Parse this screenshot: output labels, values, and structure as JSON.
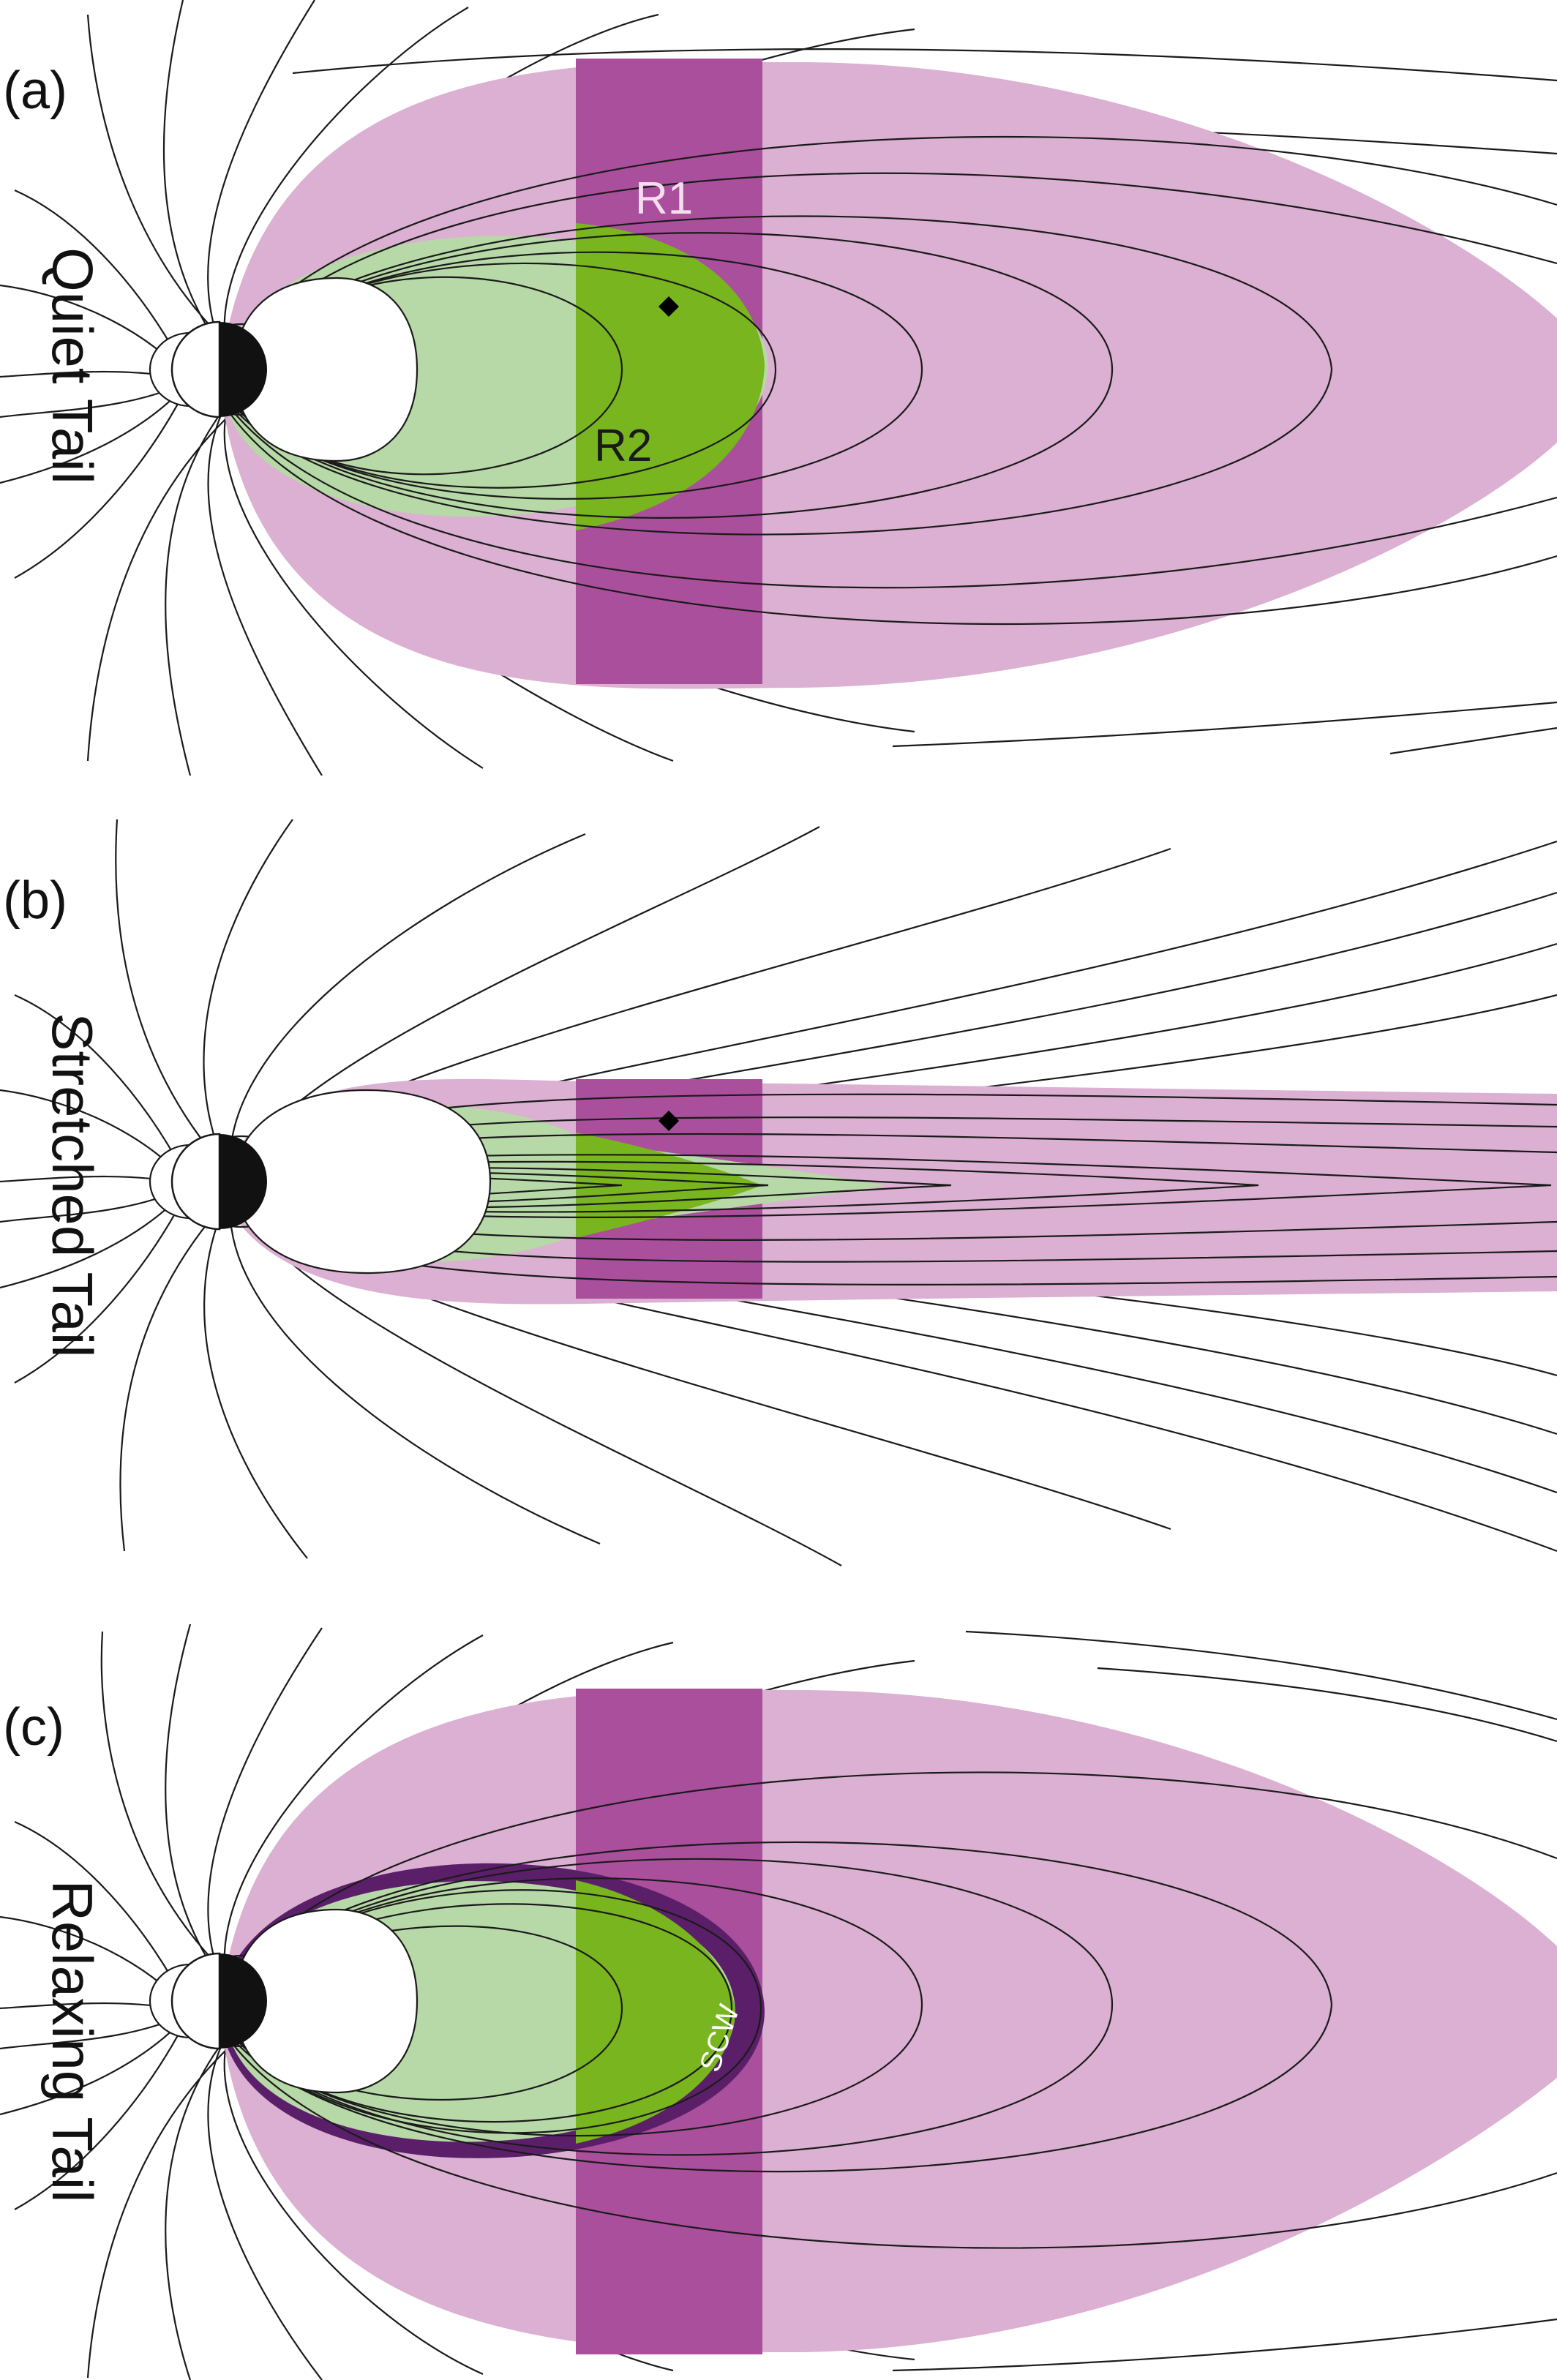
{
  "figure": {
    "colors": {
      "r1_light": "#dbb0d2",
      "r1_dark": "#a94f9c",
      "r2_light": "#b7d8a7",
      "r2_dark": "#78b51e",
      "scw": "#5b1f6a",
      "earth_night": "#111111",
      "field_line": "#1a1a1a",
      "marker": "#000000"
    },
    "panels": [
      {
        "id": "a",
        "panel_label": "(a)",
        "side_label": "Quiet Tail",
        "labels": {
          "r1": "R1",
          "r2": "R2"
        },
        "has_marker": true,
        "has_scw": false
      },
      {
        "id": "b",
        "panel_label": "(b)",
        "side_label": "Stretched Tail",
        "has_marker": true,
        "has_scw": false
      },
      {
        "id": "c",
        "panel_label": "(c)",
        "side_label": "Relaxing Tail",
        "labels": {
          "scw": "SCW"
        },
        "has_marker": false,
        "has_scw": true
      }
    ]
  }
}
